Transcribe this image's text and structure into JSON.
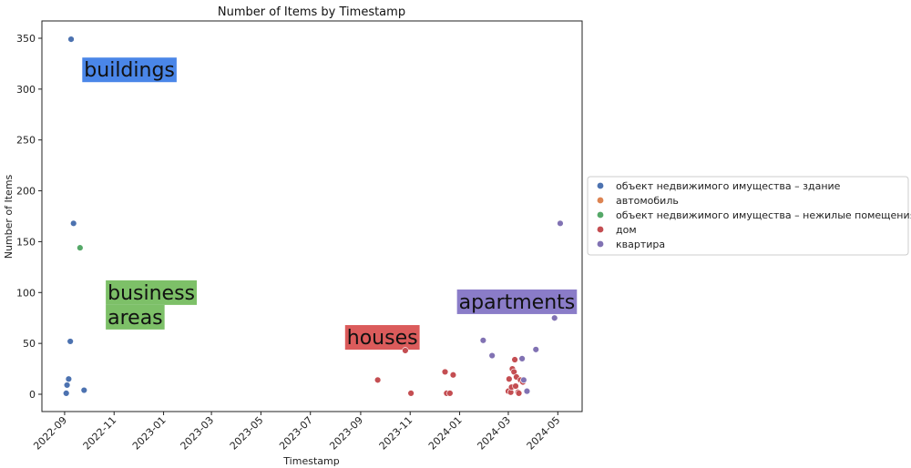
{
  "chart_data": {
    "type": "scatter",
    "title": "Number of Items by Timestamp",
    "xlabel": "Timestamp",
    "ylabel": "Number of Items",
    "xlim": [
      "2022-08-04",
      "2024-05-31"
    ],
    "ylim": [
      -17,
      367
    ],
    "x_ticks": [
      "2022-09",
      "2022-11",
      "2023-01",
      "2023-03",
      "2023-05",
      "2023-07",
      "2023-09",
      "2023-11",
      "2024-01",
      "2024-03",
      "2024-05"
    ],
    "y_ticks": [
      0,
      50,
      100,
      150,
      200,
      250,
      300,
      350
    ],
    "grid": false,
    "legend_position": "right",
    "series": [
      {
        "name": "объект недвижимого имущества – здание",
        "color": "#4c72b0",
        "points": [
          {
            "x": "2022-09-03",
            "y": 1
          },
          {
            "x": "2022-09-04",
            "y": 9
          },
          {
            "x": "2022-09-06",
            "y": 15
          },
          {
            "x": "2022-09-08",
            "y": 52
          },
          {
            "x": "2022-09-09",
            "y": 349
          },
          {
            "x": "2022-09-12",
            "y": 168
          },
          {
            "x": "2022-09-25",
            "y": 4
          }
        ]
      },
      {
        "name": "автомобиль",
        "color": "#dd8452",
        "points": []
      },
      {
        "name": "объект недвижимого имущества – нежилые помещения",
        "color": "#55a868",
        "points": [
          {
            "x": "2022-09-20",
            "y": 144
          }
        ]
      },
      {
        "name": "дом",
        "color": "#c44e52",
        "points": [
          {
            "x": "2023-09-22",
            "y": 14
          },
          {
            "x": "2023-10-26",
            "y": 43
          },
          {
            "x": "2023-11-02",
            "y": 1
          },
          {
            "x": "2023-12-14",
            "y": 22
          },
          {
            "x": "2023-12-16",
            "y": 1
          },
          {
            "x": "2023-12-20",
            "y": 1
          },
          {
            "x": "2023-12-24",
            "y": 19
          },
          {
            "x": "2024-03-01",
            "y": 3
          },
          {
            "x": "2024-03-02",
            "y": 15
          },
          {
            "x": "2024-03-04",
            "y": 2
          },
          {
            "x": "2024-03-05",
            "y": 7
          },
          {
            "x": "2024-03-06",
            "y": 25
          },
          {
            "x": "2024-03-08",
            "y": 22
          },
          {
            "x": "2024-03-09",
            "y": 34
          },
          {
            "x": "2024-03-10",
            "y": 8
          },
          {
            "x": "2024-03-11",
            "y": 17
          },
          {
            "x": "2024-03-13",
            "y": 2
          },
          {
            "x": "2024-03-14",
            "y": 1
          },
          {
            "x": "2024-03-16",
            "y": 14
          },
          {
            "x": "2024-03-19",
            "y": 12
          }
        ]
      },
      {
        "name": "квартира",
        "color": "#8172b3",
        "points": [
          {
            "x": "2024-01-30",
            "y": 53
          },
          {
            "x": "2024-02-10",
            "y": 38
          },
          {
            "x": "2024-03-18",
            "y": 35
          },
          {
            "x": "2024-03-20",
            "y": 14
          },
          {
            "x": "2024-03-24",
            "y": 3
          },
          {
            "x": "2024-04-04",
            "y": 44
          },
          {
            "x": "2024-04-27",
            "y": 75
          },
          {
            "x": "2024-05-04",
            "y": 168
          }
        ]
      }
    ],
    "annotations": [
      {
        "text": "buildings",
        "x": "2022-09-25",
        "y": 331,
        "color": "#4a86e8"
      },
      {
        "text": "business\nareas",
        "x": "2022-10-24",
        "y": 112,
        "color": "#7dc068"
      },
      {
        "text": "houses",
        "x": "2023-08-15",
        "y": 68,
        "color": "#db5b5b"
      },
      {
        "text": "apartments",
        "x": "2023-12-31",
        "y": 103,
        "color": "#8a7cc8"
      }
    ]
  }
}
